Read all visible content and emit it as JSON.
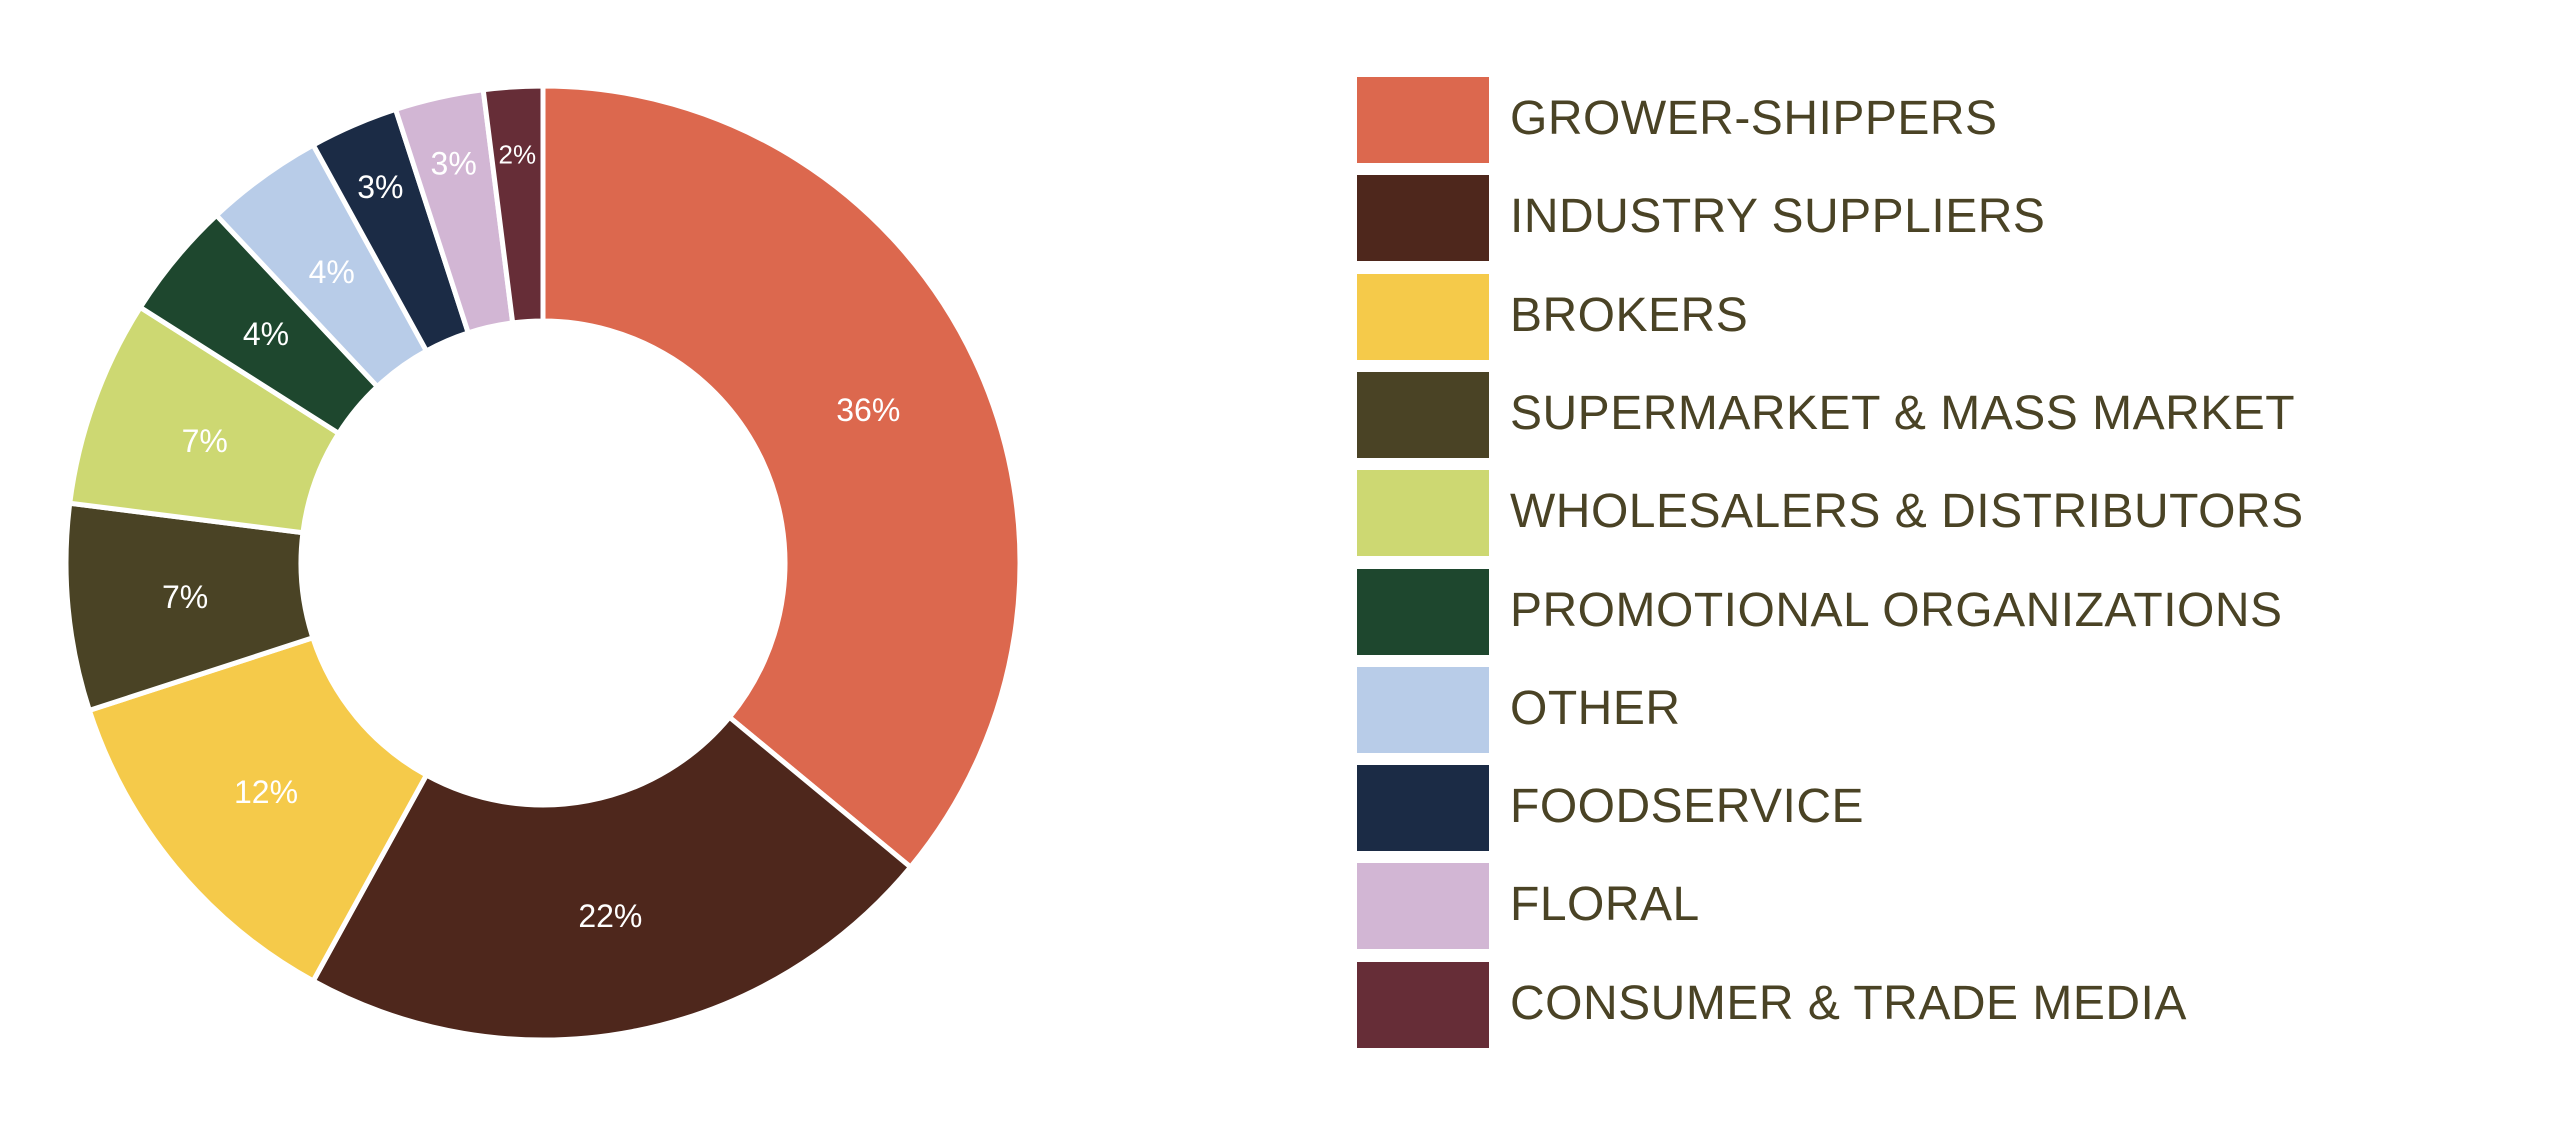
{
  "chart_data": {
    "type": "pie",
    "donut": true,
    "start": "top",
    "direction": "clockwise",
    "legend_position": "right",
    "categories": [
      "GROWER-SHIPPERS",
      "INDUSTRY SUPPLIERS",
      "BROKERS",
      "SUPERMARKET & MASS MARKET",
      "WHOLESALERS & DISTRIBUTORS",
      "PROMOTIONAL ORGANIZATIONS",
      "OTHER",
      "FOODSERVICE",
      "FLORAL",
      "CONSUMER & TRADE MEDIA"
    ],
    "values": [
      36,
      22,
      12,
      7,
      7,
      4,
      4,
      3,
      3,
      2
    ],
    "labels": [
      "36%",
      "22%",
      "12%",
      "7%",
      "7%",
      "4%",
      "4%",
      "3%",
      "3%",
      "2%"
    ],
    "colors": [
      "#dc684e",
      "#4e271c",
      "#f5ca4a",
      "#4a4325",
      "#cdd872",
      "#1e472e",
      "#b8cce8",
      "#1b2b45",
      "#d2b6d4",
      "#662d37"
    ]
  }
}
